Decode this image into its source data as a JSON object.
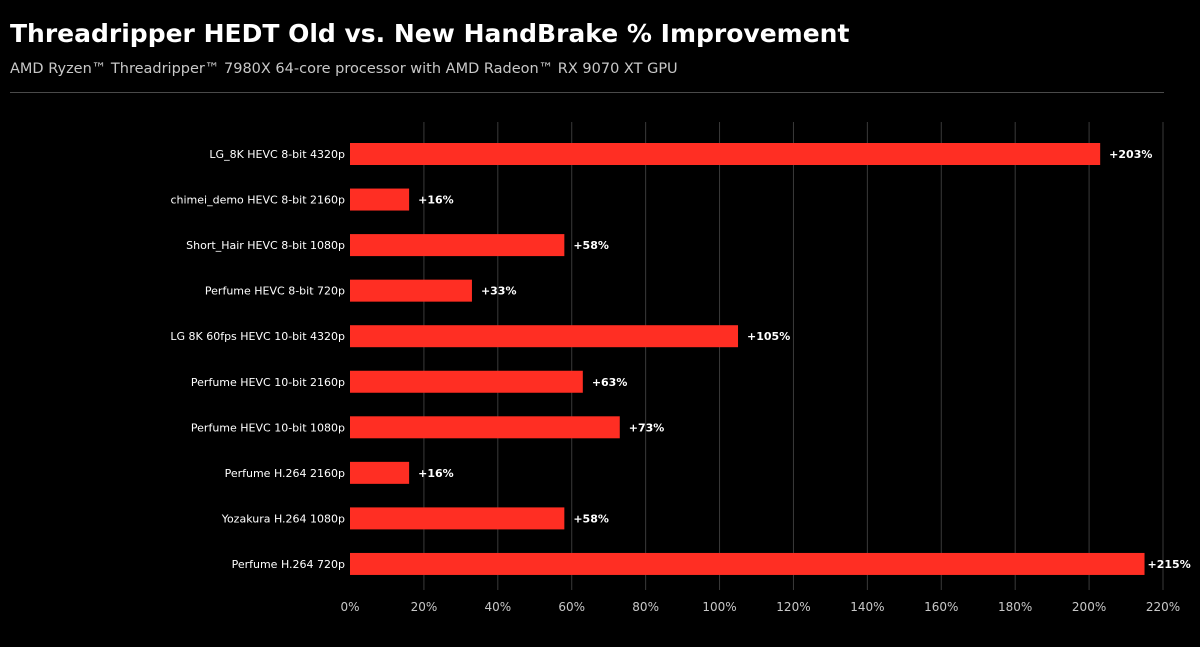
{
  "header": {
    "title": "Threadripper HEDT Old vs. New HandBrake % Improvement",
    "subtitle": "AMD Ryzen™ Threadripper™ 7980X 64-core processor with AMD Radeon™ RX 9070 XT GPU"
  },
  "colors": {
    "background": "#000000",
    "bar": "#ff2e23",
    "grid": "#3a3a3a",
    "text": "#ffffff",
    "muted_text": "#c8c8c8"
  },
  "chart_data": {
    "type": "bar",
    "orientation": "horizontal",
    "categories": [
      "LG_8K HEVC 8-bit 4320p",
      "chimei_demo HEVC 8-bit 2160p",
      "Short_Hair HEVC 8-bit 1080p",
      "Perfume HEVC 8-bit 720p",
      "LG 8K 60fps HEVC 10-bit 4320p",
      "Perfume HEVC 10-bit 2160p",
      "Perfume HEVC 10-bit 1080p",
      "Perfume H.264 2160p",
      "Yozakura H.264 1080p",
      "Perfume H.264 720p"
    ],
    "values": [
      203,
      16,
      58,
      33,
      105,
      63,
      73,
      16,
      58,
      215
    ],
    "data_labels": [
      "+203%",
      "+16%",
      "+58%",
      "+33%",
      "+105%",
      "+63%",
      "+73%",
      "+16%",
      "+58%",
      "+215%"
    ],
    "xlim": [
      0,
      220
    ],
    "xticks": [
      0,
      20,
      40,
      60,
      80,
      100,
      120,
      140,
      160,
      180,
      200,
      220
    ],
    "xtick_labels": [
      "0%",
      "20%",
      "40%",
      "60%",
      "80%",
      "100%",
      "120%",
      "140%",
      "160%",
      "180%",
      "200%",
      "220%"
    ],
    "xlabel": "",
    "ylabel": "",
    "grid": "vertical",
    "legend": "none"
  }
}
